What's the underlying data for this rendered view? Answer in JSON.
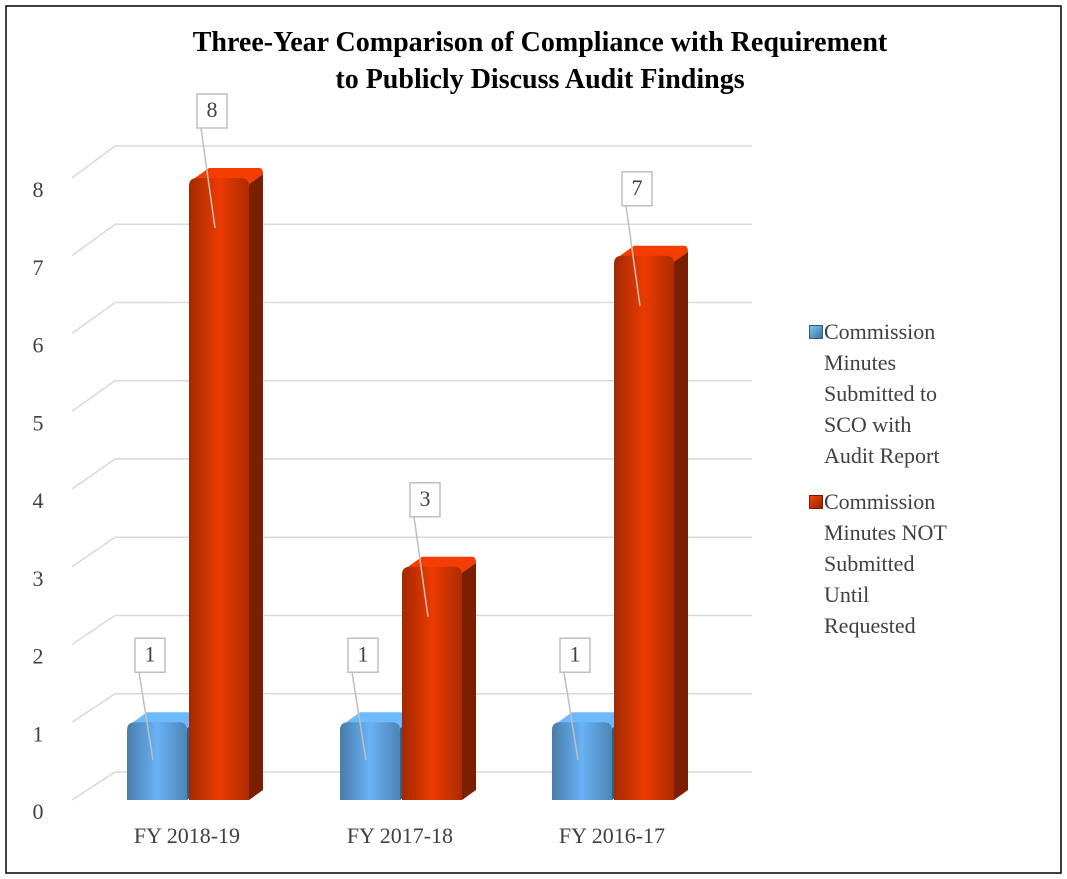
{
  "chart_data": {
    "type": "bar3d",
    "title": "Three-Year Comparison of Compliance with Requirement to Publicly Discuss Audit Findings",
    "categories": [
      "FY 2018-19",
      "FY 2017-18",
      "FY 2016-17"
    ],
    "series": [
      {
        "name": "Commission Minutes Submitted to SCO with Audit Report",
        "color": "#5b9bd5",
        "values": [
          1,
          1,
          1
        ]
      },
      {
        "name": "Commission Minutes NOT Submitted Until Requested",
        "color": "#cc3300",
        "values": [
          8,
          3,
          7
        ]
      }
    ],
    "ylim": [
      0,
      8
    ],
    "yticks": [
      0,
      1,
      2,
      3,
      4,
      5,
      6,
      7,
      8
    ],
    "grid": true,
    "legend": "right"
  }
}
